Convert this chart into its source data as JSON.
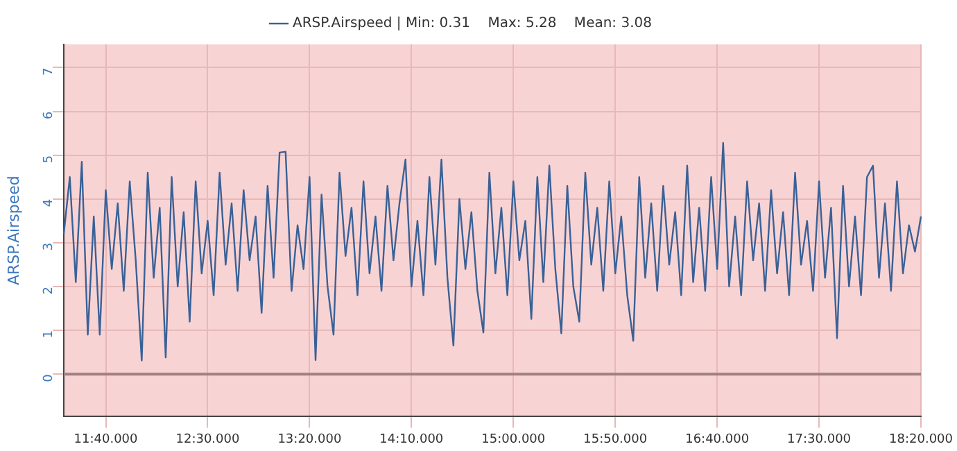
{
  "chart_data": {
    "type": "line",
    "ylabel": "ARSP.Airspeed",
    "categories": [
      null,
      null,
      null,
      null,
      null,
      null,
      null,
      "11:40.000",
      null,
      null,
      null,
      null,
      null,
      null,
      null,
      null,
      null,
      null,
      null,
      null,
      null,
      null,
      null,
      null,
      "12:30.000",
      null,
      null,
      null,
      null,
      null,
      null,
      null,
      null,
      null,
      null,
      null,
      null,
      null,
      null,
      null,
      null,
      "13:20.000",
      null,
      null,
      null,
      null,
      null,
      null,
      null,
      null,
      null,
      null,
      null,
      null,
      null,
      null,
      null,
      null,
      "14:10.000",
      null,
      null,
      null,
      null,
      null,
      null,
      null,
      null,
      null,
      null,
      null,
      null,
      null,
      null,
      null,
      null,
      "15:00.000",
      null,
      null,
      null,
      null,
      null,
      null,
      null,
      null,
      null,
      null,
      null,
      null,
      null,
      null,
      null,
      null,
      "15:50.000",
      null,
      null,
      null,
      null,
      null,
      null,
      null,
      null,
      null,
      null,
      null,
      null,
      null,
      null,
      null,
      null,
      "16:40.000",
      null,
      null,
      null,
      null,
      null,
      null,
      null,
      null,
      null,
      null,
      null,
      null,
      null,
      null,
      null,
      null,
      "17:30.000",
      null,
      null,
      null,
      null,
      null,
      null,
      null,
      null,
      null,
      null,
      null,
      null,
      null,
      null,
      null,
      null,
      "18:20.000"
    ],
    "series": [
      {
        "name": "ARSP.Airspeed | Min: 0.31    Max: 5.28    Mean: 3.08",
        "color": "#3a6196",
        "values": [
          3.2,
          4.5,
          2.1,
          4.85,
          0.9,
          3.6,
          0.9,
          4.2,
          2.4,
          3.9,
          1.9,
          4.4,
          2.6,
          0.31,
          4.6,
          2.2,
          3.8,
          0.38,
          4.5,
          2.0,
          3.7,
          1.2,
          4.4,
          2.3,
          3.5,
          1.8,
          4.6,
          2.5,
          3.9,
          1.9,
          4.2,
          2.6,
          3.6,
          1.4,
          4.3,
          2.2,
          5.06,
          5.08,
          1.9,
          3.4,
          2.4,
          4.5,
          0.32,
          4.1,
          2.0,
          0.9,
          4.6,
          2.7,
          3.8,
          1.8,
          4.4,
          2.3,
          3.6,
          1.9,
          4.3,
          2.6,
          3.9,
          4.9,
          2.0,
          3.5,
          1.8,
          4.5,
          2.5,
          4.9,
          2.2,
          0.65,
          4.0,
          2.4,
          3.7,
          1.9,
          0.95,
          4.6,
          2.3,
          3.8,
          1.8,
          4.4,
          2.6,
          3.5,
          1.26,
          4.5,
          2.1,
          4.76,
          2.4,
          0.93,
          4.3,
          2.0,
          1.2,
          4.6,
          2.5,
          3.8,
          1.9,
          4.4,
          2.3,
          3.6,
          1.8,
          0.76,
          4.5,
          2.2,
          3.9,
          1.9,
          4.3,
          2.5,
          3.7,
          1.8,
          4.76,
          2.1,
          3.8,
          1.9,
          4.5,
          2.4,
          5.28,
          2.0,
          3.6,
          1.8,
          4.4,
          2.6,
          3.9,
          1.9,
          4.2,
          2.3,
          3.7,
          1.8,
          4.6,
          2.5,
          3.5,
          1.9,
          4.4,
          2.2,
          3.8,
          0.82,
          4.3,
          2.0,
          3.6,
          1.8,
          4.5,
          4.76,
          2.2,
          3.9,
          1.9,
          4.4,
          2.3,
          3.4,
          2.8,
          3.6
        ]
      }
    ],
    "ylim": [
      -0.97,
      7.53
    ],
    "yticks": [
      0,
      1,
      2,
      3,
      4,
      5,
      6,
      7
    ],
    "ref_lines": [
      {
        "axis": "y",
        "value": 0,
        "color": "#a08080"
      }
    ],
    "grid": true,
    "legend": "top",
    "marker": "none",
    "line_style": "solid"
  }
}
